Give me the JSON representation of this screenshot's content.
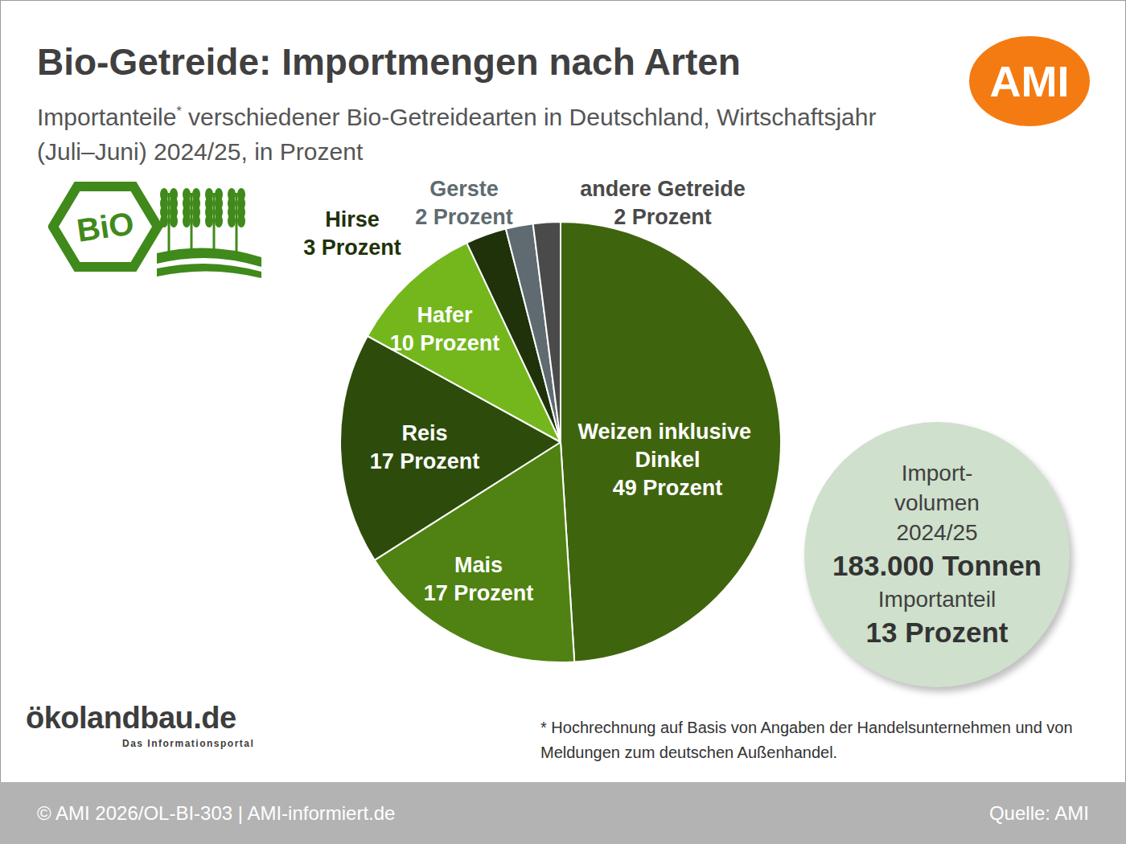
{
  "chart_data": {
    "type": "pie",
    "title": "Bio-Getreide: Importmengen nach Arten",
    "subtitle": "Importanteile* verschiedener Bio-Getreidearten in Deutschland, Wirtschaftsjahr (Juli–Juni) 2024/25, in Prozent",
    "categories": [
      "Weizen inklusive Dinkel",
      "Mais",
      "Reis",
      "Hafer",
      "Hirse",
      "Gerste",
      "andere Getreide"
    ],
    "values": [
      49,
      17,
      17,
      10,
      3,
      2,
      2
    ],
    "value_labels": [
      "49 Prozent",
      "17 Prozent",
      "17 Prozent",
      "10 Prozent",
      "3 Prozent",
      "2 Prozent",
      "2 Prozent"
    ],
    "colors": [
      "#3f640e",
      "#4f8212",
      "#2d4c0b",
      "#74b71d",
      "#1f320a",
      "#5f6b70",
      "#4a4a4a"
    ],
    "data_labels": true,
    "annotations": {
      "logo": "AMI",
      "bio_logo": "BiO",
      "import_box": {
        "lines": [
          "Import-",
          "volumen",
          "2024/25"
        ],
        "volume": "183.000 Tonnen",
        "share_label": "Importanteil",
        "share": "13 Prozent"
      },
      "footnote": "* Hochrechnung auf Basis von Angaben der Handelsunternehmen und von Meldungen zum deutschen Außenhandel.",
      "portal": "ökolandbau.de",
      "portal_sub": "Das Informationsportal",
      "footer_left": "© AMI 2026/OL-BI-303 | AMI-informiert.de",
      "footer_right": "Quelle: AMI"
    }
  }
}
